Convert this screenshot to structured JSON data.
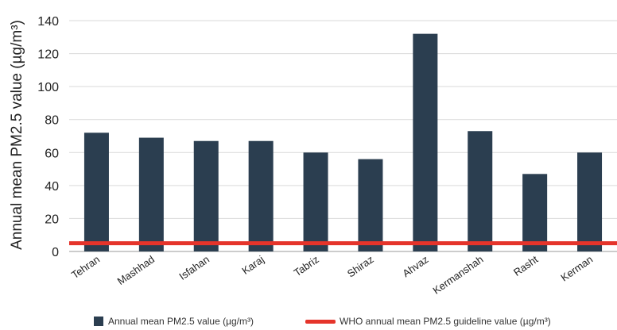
{
  "chart_data": {
    "type": "bar",
    "categories": [
      "Tehran",
      "Mashhad",
      "Isfahan",
      "Karaj",
      "Tabriz",
      "Shiraz",
      "Ahvaz",
      "Kermanshah",
      "Rasht",
      "Kerman"
    ],
    "series": [
      {
        "name": "Annual mean PM2.5 value (µg/m³)",
        "values": [
          72,
          69,
          67,
          67,
          60,
          56,
          132,
          73,
          47,
          60
        ],
        "color": "#2b3e50"
      }
    ],
    "reference_line": {
      "name": "WHO annual mean PM2.5 guideline value (µg/m³)",
      "value": 5,
      "color": "#e5342b"
    },
    "ylabel": "Annual mean PM2.5 value (µg/m³)",
    "xlabel": "",
    "ylim": [
      0,
      140
    ],
    "yticks": [
      0,
      20,
      40,
      60,
      80,
      100,
      120,
      140
    ],
    "grid": true,
    "legend_position": "bottom"
  }
}
